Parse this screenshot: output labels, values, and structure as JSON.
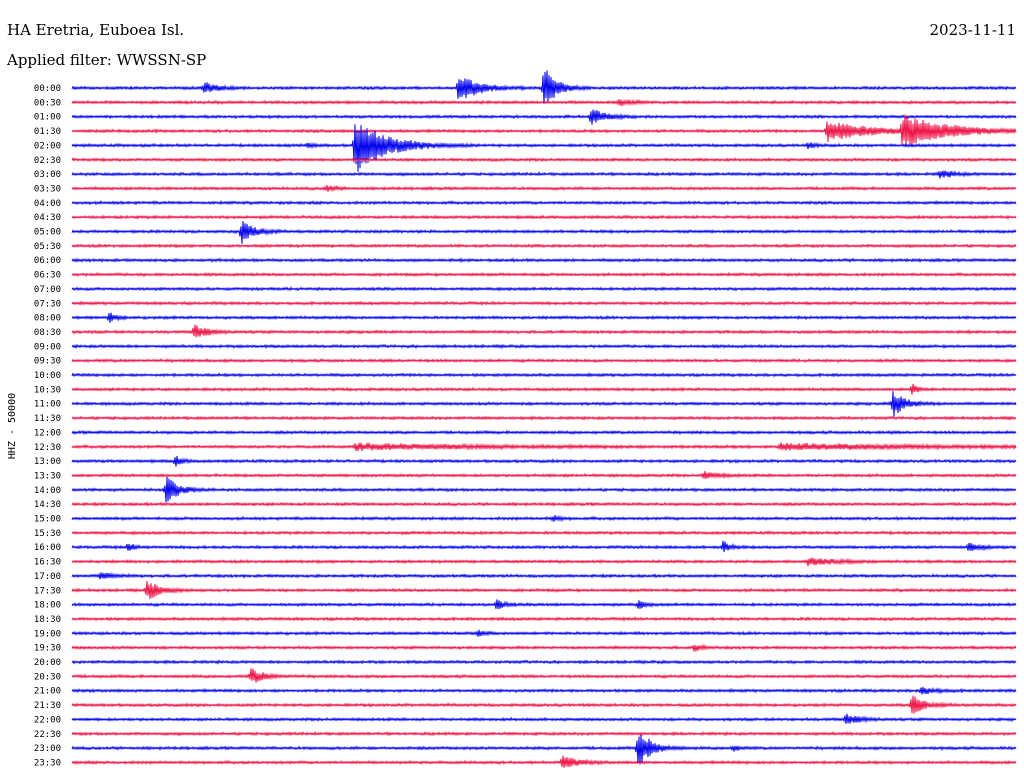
{
  "header": {
    "station": "HA Eretria, Euboea Isl.",
    "filter": "Applied filter: WWSSN-SP",
    "date": "2023-11-11"
  },
  "chart_data": {
    "type": "line",
    "title": "HA Eretria, Euboea Isl.",
    "subtitle": "Applied filter: WWSSN-SP",
    "date": "2023-11-11",
    "ylabel": "HHZ - 50000",
    "colors": {
      "even": "#0000ee",
      "odd": "#ee1144"
    },
    "trace_minutes": 30,
    "rows": [
      "00:00",
      "00:30",
      "01:00",
      "01:30",
      "02:00",
      "02:30",
      "03:00",
      "03:30",
      "04:00",
      "04:30",
      "05:00",
      "05:30",
      "06:00",
      "06:30",
      "07:00",
      "07:30",
      "08:00",
      "08:30",
      "09:00",
      "09:30",
      "10:00",
      "10:30",
      "11:00",
      "11:30",
      "12:00",
      "12:30",
      "13:00",
      "13:30",
      "14:00",
      "14:30",
      "15:00",
      "15:30",
      "16:00",
      "16:30",
      "17:00",
      "17:30",
      "18:00",
      "18:30",
      "19:00",
      "19:30",
      "20:00",
      "20:30",
      "21:00",
      "21:30",
      "22:00",
      "22:30",
      "23:00",
      "23:30"
    ],
    "events": [
      {
        "row": 0,
        "t": 0.14,
        "a": 6,
        "d": 0.02
      },
      {
        "row": 0,
        "t": 0.41,
        "a": 16,
        "d": 0.03
      },
      {
        "row": 0,
        "t": 0.5,
        "a": 22,
        "d": 0.02
      },
      {
        "row": 1,
        "t": 0.58,
        "a": 3,
        "d": 0.02
      },
      {
        "row": 2,
        "t": 0.55,
        "a": 9,
        "d": 0.02
      },
      {
        "row": 3,
        "t": 0.8,
        "a": 10,
        "d": 0.07
      },
      {
        "row": 3,
        "t": 0.88,
        "a": 16,
        "d": 0.07
      },
      {
        "row": 4,
        "t": 0.3,
        "a": 28,
        "d": 0.05
      },
      {
        "row": 4,
        "t": 0.78,
        "a": 3,
        "d": 0.01
      },
      {
        "row": 4,
        "t": 0.25,
        "a": 2,
        "d": 0.01
      },
      {
        "row": 6,
        "t": 0.92,
        "a": 4,
        "d": 0.02
      },
      {
        "row": 7,
        "t": 0.27,
        "a": 4,
        "d": 0.01
      },
      {
        "row": 10,
        "t": 0.18,
        "a": 11,
        "d": 0.02
      },
      {
        "row": 16,
        "t": 0.04,
        "a": 5,
        "d": 0.01
      },
      {
        "row": 17,
        "t": 0.13,
        "a": 8,
        "d": 0.02
      },
      {
        "row": 21,
        "t": 0.89,
        "a": 5,
        "d": 0.01
      },
      {
        "row": 22,
        "t": 0.87,
        "a": 13,
        "d": 0.02
      },
      {
        "row": 25,
        "t": 0.3,
        "a": 3,
        "d": 0.2
      },
      {
        "row": 25,
        "t": 0.75,
        "a": 3,
        "d": 0.23
      },
      {
        "row": 26,
        "t": 0.11,
        "a": 5,
        "d": 0.01
      },
      {
        "row": 27,
        "t": 0.67,
        "a": 4,
        "d": 0.02
      },
      {
        "row": 28,
        "t": 0.1,
        "a": 14,
        "d": 0.02
      },
      {
        "row": 30,
        "t": 0.51,
        "a": 3,
        "d": 0.01
      },
      {
        "row": 32,
        "t": 0.06,
        "a": 4,
        "d": 0.01
      },
      {
        "row": 32,
        "t": 0.69,
        "a": 6,
        "d": 0.01
      },
      {
        "row": 32,
        "t": 0.95,
        "a": 4,
        "d": 0.02
      },
      {
        "row": 33,
        "t": 0.78,
        "a": 4,
        "d": 0.04
      },
      {
        "row": 34,
        "t": 0.03,
        "a": 3,
        "d": 0.02
      },
      {
        "row": 35,
        "t": 0.08,
        "a": 10,
        "d": 0.02
      },
      {
        "row": 36,
        "t": 0.45,
        "a": 6,
        "d": 0.01
      },
      {
        "row": 36,
        "t": 0.6,
        "a": 4,
        "d": 0.01
      },
      {
        "row": 38,
        "t": 0.43,
        "a": 3,
        "d": 0.01
      },
      {
        "row": 39,
        "t": 0.66,
        "a": 4,
        "d": 0.01
      },
      {
        "row": 41,
        "t": 0.19,
        "a": 8,
        "d": 0.02
      },
      {
        "row": 42,
        "t": 0.9,
        "a": 4,
        "d": 0.02
      },
      {
        "row": 43,
        "t": 0.89,
        "a": 10,
        "d": 0.02
      },
      {
        "row": 44,
        "t": 0.82,
        "a": 6,
        "d": 0.02
      },
      {
        "row": 46,
        "t": 0.6,
        "a": 20,
        "d": 0.02
      },
      {
        "row": 46,
        "t": 0.7,
        "a": 3,
        "d": 0.01
      },
      {
        "row": 47,
        "t": 0.52,
        "a": 8,
        "d": 0.02
      }
    ]
  }
}
